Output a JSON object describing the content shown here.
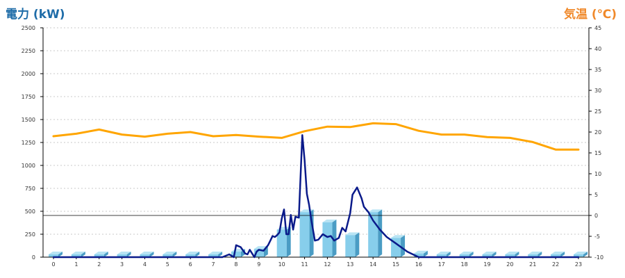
{
  "chart_data": {
    "type": "bar+line",
    "ylabel_left": "電力 (kW)",
    "ylabel_right": "気温 (℃)",
    "left_axis": {
      "min": 0,
      "max": 2500,
      "ticks": [
        0,
        250,
        500,
        750,
        1000,
        1250,
        1500,
        1750,
        2000,
        2250,
        2500
      ]
    },
    "right_axis": {
      "min": -10,
      "max": 45,
      "ticks": [
        -10,
        -5,
        0,
        5,
        10,
        15,
        20,
        25,
        30,
        35,
        40,
        45
      ]
    },
    "x_axis": {
      "min": 0,
      "max": 23,
      "ticks": [
        0,
        1,
        2,
        3,
        4,
        5,
        6,
        7,
        8,
        9,
        10,
        11,
        12,
        13,
        14,
        15,
        16,
        17,
        18,
        19,
        20,
        21,
        22,
        23
      ]
    },
    "grid": "horizontal-dotted",
    "reference_line_temp": 0,
    "bars": {
      "axis": "left",
      "categories": [
        0,
        1,
        2,
        3,
        4,
        5,
        6,
        7,
        8,
        9,
        10,
        11,
        12,
        13,
        14,
        15,
        16,
        17,
        18,
        19,
        20,
        21,
        22,
        23
      ],
      "values": [
        30,
        30,
        30,
        30,
        30,
        30,
        30,
        30,
        60,
        90,
        300,
        490,
        380,
        240,
        490,
        210,
        40,
        30,
        30,
        30,
        30,
        30,
        30,
        30
      ]
    },
    "power_line": {
      "axis": "left",
      "x": [
        0,
        7.4,
        7.7,
        7.9,
        8.0,
        8.2,
        8.4,
        8.5,
        8.6,
        8.7,
        8.8,
        8.9,
        9.0,
        9.2,
        9.4,
        9.5,
        9.6,
        9.7,
        9.8,
        9.9,
        10.0,
        10.1,
        10.2,
        10.3,
        10.4,
        10.5,
        10.6,
        10.75,
        10.9,
        11.0,
        11.1,
        11.2,
        11.3,
        11.45,
        11.6,
        11.8,
        12.0,
        12.15,
        12.3,
        12.5,
        12.65,
        12.8,
        13.0,
        13.1,
        13.3,
        13.5,
        13.6,
        13.7,
        13.8,
        14.0,
        14.3,
        14.6,
        15.0,
        15.5,
        16.0,
        23.0
      ],
      "y": [
        0,
        0,
        30,
        0,
        130,
        110,
        40,
        30,
        80,
        40,
        0,
        60,
        80,
        70,
        130,
        180,
        230,
        220,
        240,
        270,
        420,
        520,
        250,
        250,
        460,
        300,
        440,
        430,
        1330,
        1060,
        690,
        570,
        400,
        180,
        190,
        250,
        220,
        230,
        180,
        210,
        320,
        280,
        480,
        680,
        760,
        640,
        550,
        520,
        490,
        400,
        300,
        220,
        150,
        60,
        0,
        0
      ]
    },
    "temperature_line": {
      "axis": "right",
      "x": [
        0,
        1,
        2,
        3,
        4,
        5,
        6,
        7,
        8,
        9,
        10,
        11,
        12,
        13,
        14,
        15,
        16,
        17,
        18,
        19,
        20,
        21,
        22,
        23
      ],
      "y": [
        19.0,
        19.6,
        20.6,
        19.4,
        18.9,
        19.6,
        20.0,
        19.0,
        19.3,
        18.9,
        18.6,
        20.2,
        21.3,
        21.2,
        22.1,
        21.9,
        20.3,
        19.4,
        19.4,
        18.8,
        18.6,
        17.6,
        15.8,
        15.8
      ]
    },
    "colors": {
      "bar_front": "#87ceeb",
      "bar_side": "#4a9cc4",
      "bar_top": "#b8e4f4",
      "power_line": "#0a1a8a",
      "temperature_line": "#ffa500",
      "left_title": "#1e6ca8",
      "right_title": "#f0892a",
      "grid": "#b8b8b8"
    }
  }
}
